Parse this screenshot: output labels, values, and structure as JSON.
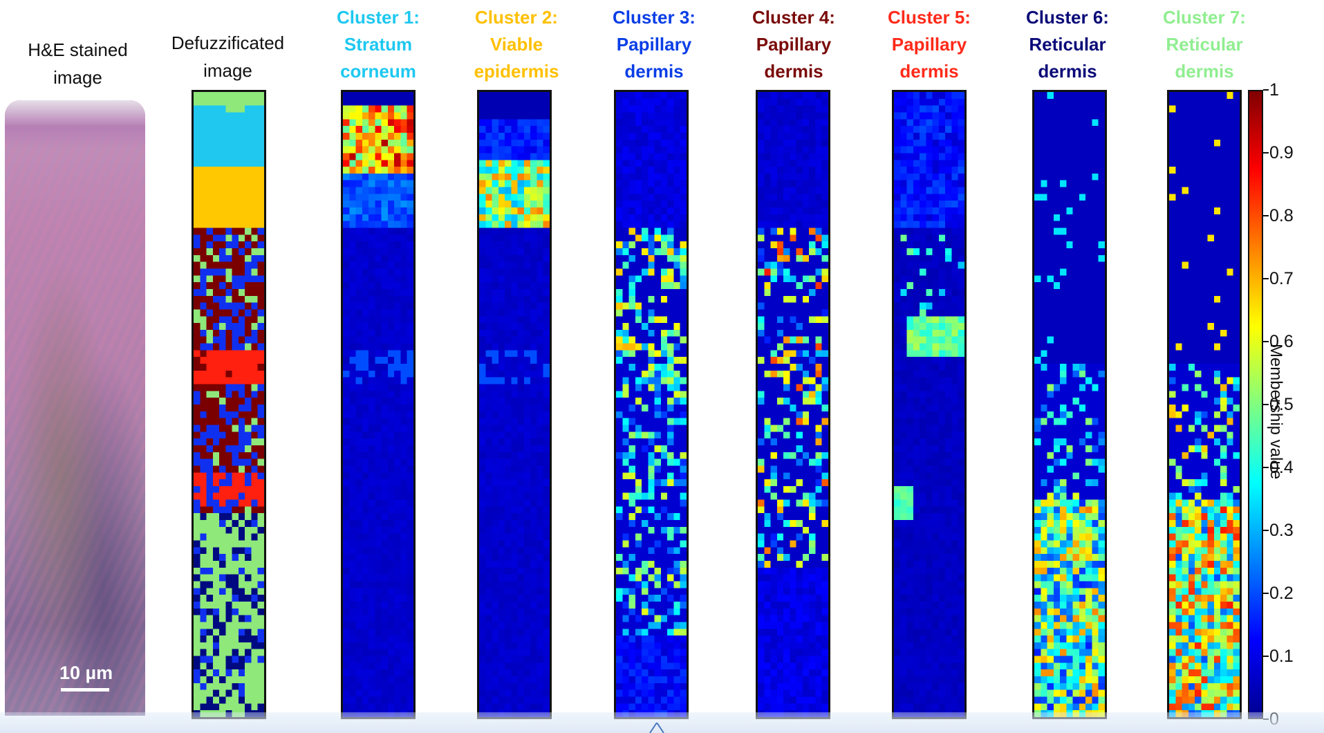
{
  "he_panel": {
    "title_line1": "H&E stained",
    "title_line2": "image",
    "scale_label": "10 µm"
  },
  "defuzz_panel": {
    "title_line1": "Defuzzificated",
    "title_line2": "image"
  },
  "clusters": [
    {
      "line1": "Cluster 1:",
      "line2": "Stratum",
      "line3": "corneum",
      "color": "#1ec8f0"
    },
    {
      "line1": "Cluster 2:",
      "line2": "Viable",
      "line3": "epidermis",
      "color": "#ffc000"
    },
    {
      "line1": "Cluster 3:",
      "line2": "Papillary",
      "line3": "dermis",
      "color": "#0a3ee6"
    },
    {
      "line1": "Cluster 4:",
      "line2": "Papillary",
      "line3": "dermis",
      "color": "#7a0a0a"
    },
    {
      "line1": "Cluster 5:",
      "line2": "Papillary",
      "line3": "dermis",
      "color": "#ff2a1a"
    },
    {
      "line1": "Cluster 6:",
      "line2": "Reticular",
      "line3": "dermis",
      "color": "#0a0a78"
    },
    {
      "line1": "Cluster 7:",
      "line2": "Reticular",
      "line3": "dermis",
      "color": "#90ee90"
    }
  ],
  "colorbar": {
    "label": "Membership value",
    "ticks": [
      "1",
      "0.9",
      "0.8",
      "0.7",
      "0.6",
      "0.5",
      "0.4",
      "0.3",
      "0.2",
      "0.1",
      "0"
    ]
  },
  "colors": {
    "accent_band": "#dfe9f6",
    "frame": "#111111"
  }
}
